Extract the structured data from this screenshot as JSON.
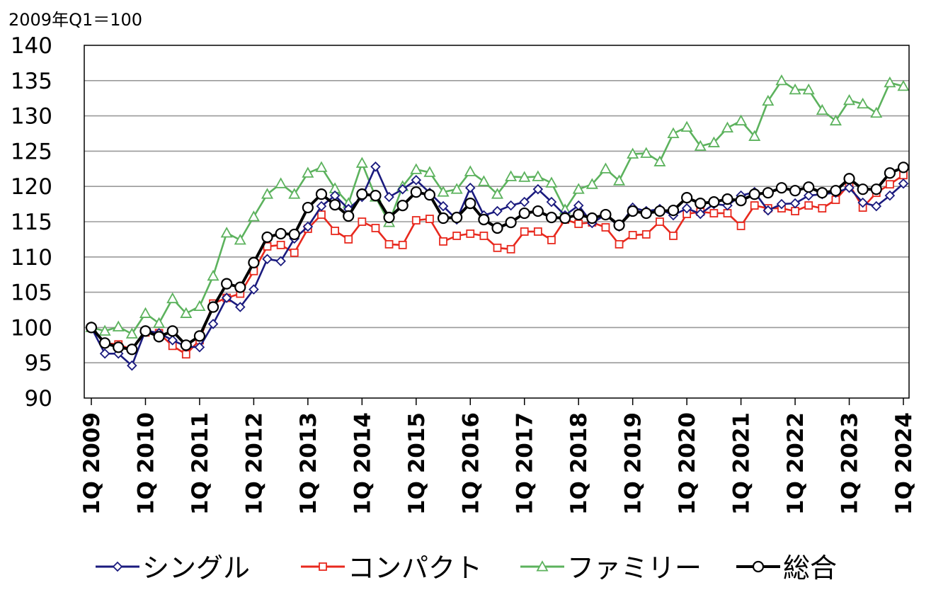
{
  "chart_data": {
    "type": "line",
    "unit_label": "2009年Q1＝100",
    "ylim": [
      90,
      140
    ],
    "y_ticks": [
      90,
      95,
      100,
      105,
      110,
      115,
      120,
      125,
      130,
      135,
      140
    ],
    "x_tick_labels": [
      "1Q 2009",
      "1Q 2010",
      "1Q 2011",
      "1Q 2012",
      "1Q 2013",
      "1Q 2014",
      "1Q 2015",
      "1Q 2016",
      "1Q 2017",
      "1Q 2018",
      "1Q 2019",
      "1Q 2020",
      "1Q 2021",
      "1Q 2022",
      "1Q 2023",
      "1Q 2024"
    ],
    "grid": true,
    "legend_position": "bottom",
    "series": [
      {
        "name": "シングル",
        "color": "#1a1a7e",
        "marker": "diamond",
        "values": [
          100,
          96.3,
          96.3,
          94.6,
          99.6,
          99.2,
          98.2,
          97.3,
          97.2,
          100.5,
          104.2,
          102.9,
          105.4,
          109.7,
          109.4,
          112.6,
          114.3,
          117.2,
          118.7,
          116.8,
          118.5,
          122.8,
          118.5,
          119.6,
          120.9,
          119.1,
          117.2,
          115.3,
          119.8,
          115.9,
          116.5,
          117.3,
          117.8,
          119.6,
          117.8,
          115.9,
          117.3,
          114.8,
          116.0,
          114.3,
          117.0,
          116.5,
          116.8,
          115.9,
          116.9,
          116.1,
          117.5,
          117.3,
          118.7,
          119.2,
          116.6,
          117.5,
          117.6,
          118.7,
          118.9,
          119.1,
          119.8,
          117.7,
          117.2,
          118.7,
          120.4
        ]
      },
      {
        "name": "コンパクト",
        "color": "#e8291e",
        "marker": "square",
        "values": [
          100,
          97.8,
          97.6,
          96.9,
          99.3,
          99.2,
          97.4,
          96.2,
          98.2,
          103.4,
          104.2,
          104.8,
          108.0,
          111.5,
          111.7,
          110.6,
          114.0,
          116.0,
          113.7,
          112.5,
          115.0,
          114.1,
          111.8,
          111.7,
          115.2,
          115.4,
          112.2,
          113.0,
          113.3,
          113.0,
          111.3,
          111.1,
          113.6,
          113.6,
          112.4,
          115.3,
          114.7,
          114.9,
          114.2,
          111.8,
          113.1,
          113.2,
          115.0,
          113.0,
          116.1,
          116.4,
          116.2,
          116.2,
          114.4,
          117.3,
          116.9,
          116.9,
          116.5,
          117.3,
          116.9,
          118.1,
          120.3,
          117.0,
          119.1,
          120.3,
          121.6
        ]
      },
      {
        "name": "ファミリー",
        "color": "#5cb25d",
        "marker": "triangle",
        "values": [
          100,
          99.5,
          100.1,
          99.1,
          102.0,
          100.6,
          104.1,
          102.0,
          103.0,
          107.3,
          113.4,
          112.4,
          115.7,
          118.9,
          120.4,
          118.9,
          121.9,
          122.7,
          119.7,
          117.6,
          123.3,
          118.5,
          114.9,
          120.0,
          122.4,
          122.0,
          119.2,
          119.6,
          122.1,
          120.7,
          118.9,
          121.4,
          121.3,
          121.4,
          120.5,
          116.7,
          119.6,
          120.3,
          122.5,
          120.8,
          124.6,
          124.7,
          123.5,
          127.5,
          128.4,
          125.7,
          126.2,
          128.3,
          129.3,
          127.1,
          132.1,
          135.0,
          133.7,
          133.7,
          130.8,
          129.3,
          132.2,
          131.7,
          130.4,
          134.7,
          134.2
        ]
      },
      {
        "name": "総合",
        "color": "#000000",
        "marker": "circle",
        "values": [
          100,
          97.8,
          97.2,
          96.9,
          99.5,
          98.7,
          99.5,
          97.5,
          98.8,
          102.9,
          106.2,
          105.7,
          109.2,
          112.8,
          113.3,
          113.2,
          117.0,
          118.9,
          117.4,
          115.8,
          118.9,
          118.7,
          115.6,
          117.3,
          119.2,
          118.8,
          115.5,
          115.6,
          117.6,
          115.3,
          114.1,
          114.9,
          116.2,
          116.5,
          115.6,
          115.5,
          116.0,
          115.5,
          116.0,
          114.5,
          116.5,
          116.2,
          116.5,
          116.6,
          118.4,
          117.6,
          117.8,
          118.2,
          118.0,
          118.9,
          119.1,
          119.8,
          119.4,
          119.9,
          119.1,
          119.4,
          121.1,
          119.6,
          119.6,
          121.9,
          122.7
        ]
      }
    ]
  }
}
